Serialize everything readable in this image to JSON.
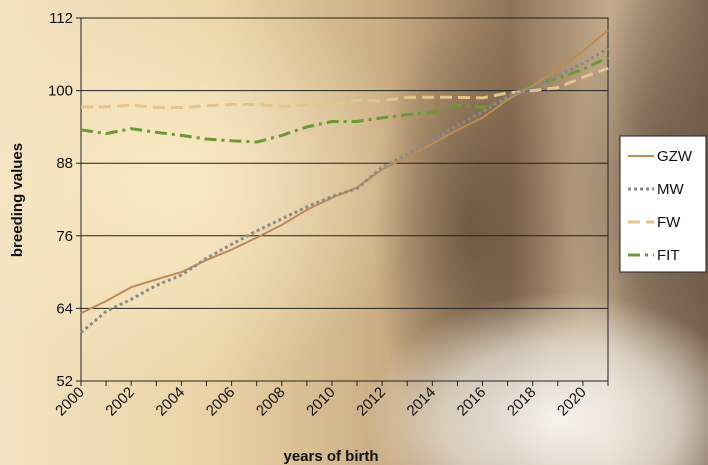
{
  "chart_data": {
    "type": "line",
    "xlabel": "years of birth",
    "ylabel": "breeding values",
    "x": [
      2000,
      2001,
      2002,
      2003,
      2004,
      2005,
      2006,
      2007,
      2008,
      2009,
      2010,
      2011,
      2012,
      2013,
      2014,
      2015,
      2016,
      2017,
      2018,
      2019,
      2020,
      2021
    ],
    "xlim": [
      2000,
      2021
    ],
    "ylim": [
      52,
      112
    ],
    "y_ticks": [
      52,
      64,
      76,
      88,
      100,
      112
    ],
    "x_tick_labels": [
      "2000",
      "2002",
      "2004",
      "2006",
      "2008",
      "2010",
      "2012",
      "2014",
      "2016",
      "2018",
      "2020"
    ],
    "grid": "horizontal",
    "legend_position": "right",
    "series": [
      {
        "name": "GZW",
        "color": "#c08a55",
        "dash": "solid",
        "values": [
          63.2,
          65.2,
          67.5,
          68.8,
          70.0,
          72.0,
          73.7,
          75.7,
          77.8,
          80.3,
          82.3,
          84.0,
          87.0,
          89.0,
          91.2,
          93.5,
          95.5,
          98.5,
          100.8,
          103.5,
          106.5,
          110.0
        ]
      },
      {
        "name": "MW",
        "color": "#8a8a8a",
        "dash": "dotted",
        "values": [
          60.0,
          63.5,
          65.5,
          67.8,
          69.5,
          72.3,
          74.6,
          76.8,
          78.8,
          80.8,
          82.5,
          83.8,
          87.3,
          89.5,
          91.8,
          94.2,
          96.5,
          99.0,
          100.5,
          102.5,
          104.5,
          107.0
        ]
      },
      {
        "name": "FW",
        "color": "#e6c48e",
        "dash": "dashed",
        "values": [
          97.3,
          97.3,
          97.6,
          97.2,
          97.2,
          97.5,
          97.7,
          97.7,
          97.4,
          97.6,
          97.7,
          98.4,
          98.3,
          98.9,
          98.9,
          98.9,
          98.8,
          99.6,
          100.0,
          100.5,
          102.2,
          103.7
        ]
      },
      {
        "name": "FIT",
        "color": "#6b9a35",
        "dash": "dashdot",
        "values": [
          93.5,
          92.9,
          93.7,
          93.1,
          92.6,
          92.0,
          91.7,
          91.5,
          92.6,
          94.0,
          94.9,
          94.9,
          95.5,
          96.0,
          96.4,
          97.6,
          97.2,
          98.5,
          101.0,
          102.0,
          103.5,
          105.5
        ]
      }
    ]
  }
}
